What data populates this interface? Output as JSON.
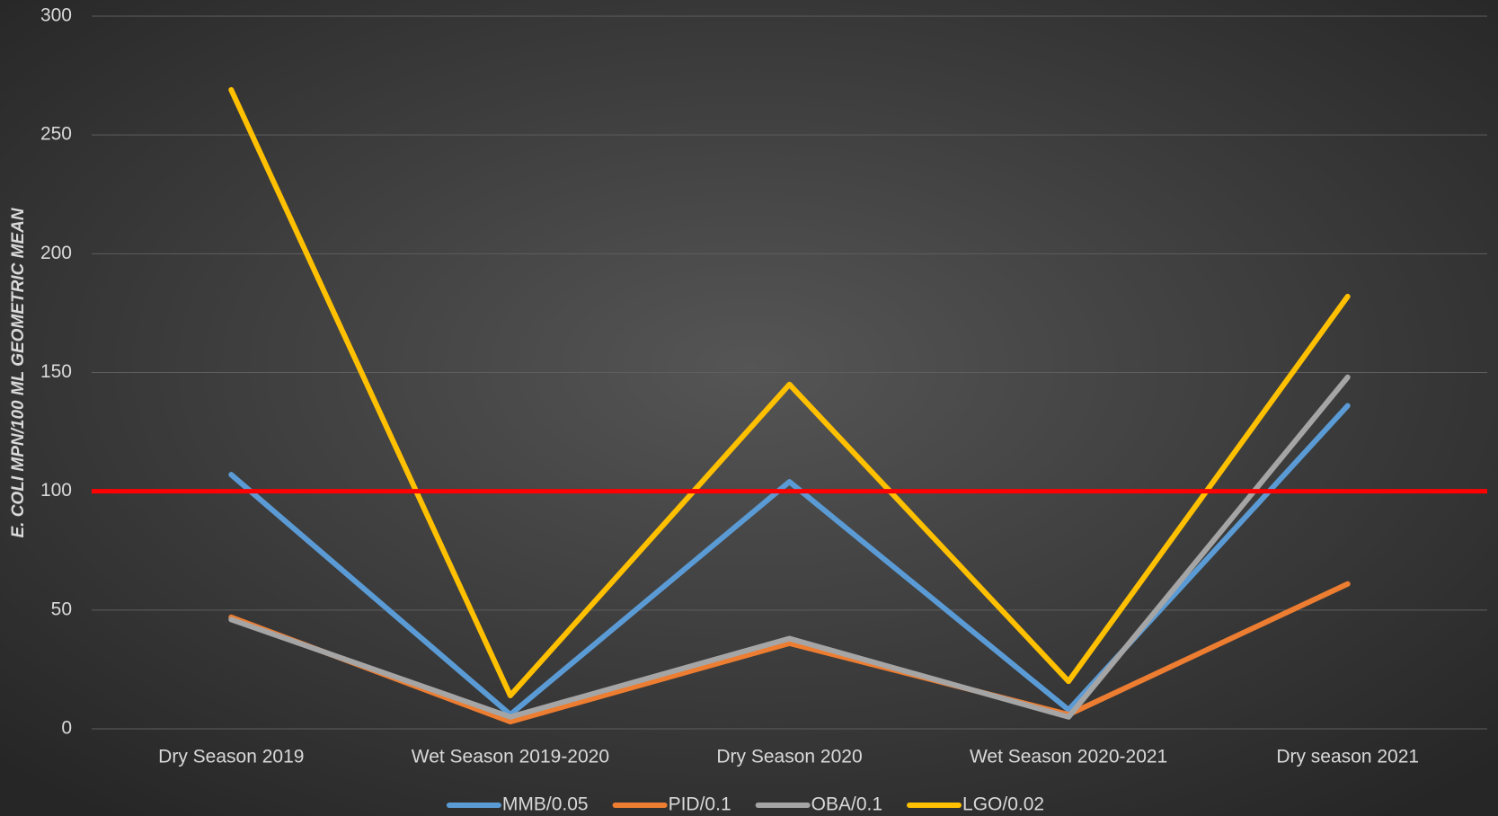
{
  "chart_data": {
    "type": "line",
    "y_label": "E. COLI MPN/100 ML GEOMETRIC MEAN",
    "categories": [
      "Dry Season 2019",
      "Wet Season 2019-2020",
      "Dry Season 2020",
      "Wet Season 2020-2021",
      "Dry season 2021"
    ],
    "series": [
      {
        "name": "MMB/0.05",
        "color": "#5b9bd5",
        "values": [
          107,
          6,
          104,
          8,
          136
        ]
      },
      {
        "name": "PID/0.1",
        "color": "#ed7d31",
        "values": [
          47,
          3,
          36,
          6,
          61
        ]
      },
      {
        "name": "OBA/0.1",
        "color": "#a5a5a5",
        "values": [
          46,
          5,
          38,
          5,
          148
        ]
      },
      {
        "name": "LGO/0.02",
        "color": "#ffc000",
        "values": [
          269,
          14,
          145,
          20,
          182
        ]
      }
    ],
    "reference_line": {
      "value": 100,
      "color": "#ff0000"
    },
    "ylim": [
      0,
      300
    ],
    "yticks": [
      0,
      50,
      100,
      150,
      200,
      250,
      300
    ],
    "grid": true,
    "legend": "bottom"
  }
}
